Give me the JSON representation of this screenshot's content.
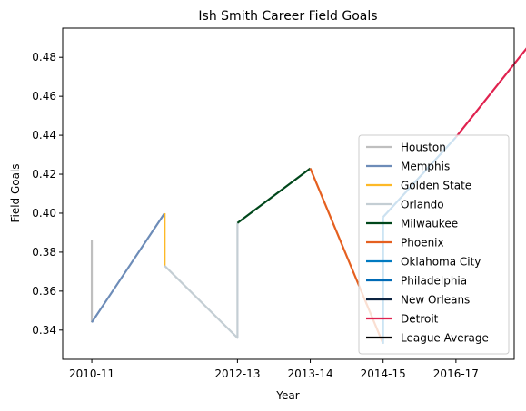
{
  "chart_data": {
    "type": "line",
    "title": "Ish Smith Career Field Goals",
    "xlabel": "Year",
    "ylabel": "Field Goals",
    "x_ticks": [
      {
        "label": "2010-11",
        "x": 0
      },
      {
        "label": "2012-13",
        "x": 2
      },
      {
        "label": "2013-14",
        "x": 3
      },
      {
        "label": "2014-15",
        "x": 4
      },
      {
        "label": "2016-17",
        "x": 5
      }
    ],
    "xlim": [
      -0.4,
      5.8
    ],
    "ylim": [
      0.325,
      0.495
    ],
    "y_ticks": [
      0.34,
      0.36,
      0.38,
      0.4,
      0.42,
      0.44,
      0.46,
      0.48
    ],
    "grid": false,
    "legend_position": "lower right",
    "series": [
      {
        "name": "Houston",
        "color": "#bfbfbf",
        "points": [
          [
            0,
            0.386
          ],
          [
            0,
            0.344
          ]
        ]
      },
      {
        "name": "Memphis",
        "color": "#6d8cb8",
        "points": [
          [
            0,
            0.344
          ],
          [
            1,
            0.4
          ]
        ]
      },
      {
        "name": "Golden State",
        "color": "#fdb927",
        "points": [
          [
            1,
            0.4
          ],
          [
            1,
            0.373
          ]
        ]
      },
      {
        "name": "Orlando",
        "color": "#c4ced4",
        "points": [
          [
            1,
            0.373
          ],
          [
            2,
            0.336
          ],
          [
            2,
            0.395
          ]
        ]
      },
      {
        "name": "Milwaukee",
        "color": "#00471b",
        "points": [
          [
            2,
            0.395
          ],
          [
            3,
            0.423
          ]
        ]
      },
      {
        "name": "Phoenix",
        "color": "#e56020",
        "points": [
          [
            3,
            0.423
          ],
          [
            4,
            0.333
          ]
        ]
      },
      {
        "name": "Oklahoma City",
        "color": "#007ac1",
        "points": [
          [
            4,
            0.333
          ],
          [
            4,
            0.398
          ]
        ]
      },
      {
        "name": "Philadelphia",
        "color": "#006bb6",
        "points": [
          [
            4,
            0.398
          ],
          [
            5,
            0.439
          ]
        ]
      },
      {
        "name": "New Orleans",
        "color": "#0c2340",
        "points": [
          [
            5,
            0.439
          ],
          [
            5,
            0.439
          ]
        ]
      },
      {
        "name": "Detroit",
        "color": "#e0224f",
        "points": [
          [
            5,
            0.439
          ],
          [
            6,
            0.486
          ]
        ]
      },
      {
        "name": "League Average",
        "color": "#000000",
        "points": []
      }
    ]
  }
}
